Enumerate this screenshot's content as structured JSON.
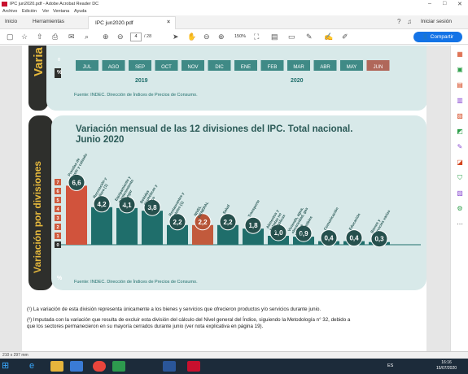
{
  "window": {
    "title": "IPC jun2020.pdf - Adobe Acrobat Reader DC"
  },
  "menu": [
    "Archivo",
    "Edición",
    "Ver",
    "Ventana",
    "Ayuda"
  ],
  "tabs": {
    "home": "Inicio",
    "tools": "Herramientas",
    "document": "IPC jun2020.pdf",
    "signin": "Iniciar sesión"
  },
  "toolbar": {
    "page_current": "4",
    "page_total": "/ 28",
    "zoom": "150%",
    "share_label": "Compartir"
  },
  "top_chart": {
    "side_title": "Varia",
    "zero_label": "0",
    "percent_label": "%",
    "months": [
      "JUL",
      "AGO",
      "SEP",
      "OCT",
      "NOV",
      "DIC",
      "ENE",
      "FEB",
      "MAR",
      "ABR",
      "MAY",
      "JUN"
    ],
    "year_left": "2019",
    "year_right": "2020",
    "source": "Fuente: INDEC. Dirección de Índices de Precios de Consumo."
  },
  "chart_data": {
    "type": "bar",
    "title": "Variación mensual de las 12 divisiones del IPC. Total nacional.",
    "subtitle": "Junio 2020",
    "side_title": "Variación por divisiones",
    "ylabel": "%",
    "ylim": [
      0,
      7
    ],
    "yticks": [
      "7",
      "6",
      "5",
      "4",
      "3",
      "2",
      "1",
      "0"
    ],
    "categories": [
      "Prendas de vestir y calzado",
      "Recreación y cultura (1)",
      "Equipamiento y mantenimiento del hogar",
      "Bebidas alcohólicas y tabaco",
      "Restaurantes y hoteles (1)",
      "NIVEL GENERAL",
      "Salud",
      "Transporte",
      "Alimentos y bebidas no alcohólicas",
      "Vivienda, agua, electricidad, gas y otros combustibles",
      "Comunicación",
      "Educación",
      "Bienes y servicios varios"
    ],
    "value_labels": [
      "6,6",
      "4,2",
      "4,1",
      "3,8",
      "2,2",
      "2,2",
      "2,2",
      "1,8",
      "1,0",
      "0,9",
      "0,4",
      "0,4",
      "0,3"
    ],
    "values": [
      6.6,
      4.2,
      4.1,
      3.8,
      2.2,
      2.2,
      2.2,
      1.8,
      1.0,
      0.9,
      0.4,
      0.4,
      0.3
    ],
    "highlight_index": 5,
    "source": "Fuente: INDEC. Dirección de Índices de Precios de Consumo."
  },
  "colors": {
    "teal_band": "#d8e9e9",
    "teal_dark": "#1f6e6b",
    "bar_primary": "#1f6e6b",
    "bar_highlight": "#c25a3c",
    "bar_first": "#d1533c",
    "bubble": "#26504d",
    "side_band": "#2e2f2c",
    "side_text": "#e6b93d"
  },
  "footnotes": [
    "(¹) La variación de esta división representa únicamente a los bienes y servicios que ofrecieron productos y/o servicios durante junio.",
    "(²) Imputada con la variación que resulta de excluir esta división del cálculo del Nivel general del Índice, siguiendo la Metodología n° 32, debido a",
    "que los sectores permanecieron en su mayoría cerrados durante junio (ver nota explicativa en página 19)."
  ],
  "statusbar": {
    "page_size": "210 x 297 mm"
  },
  "taskbar": {
    "lang": "ES",
    "time": "16:16",
    "date": "15/07/2020"
  }
}
